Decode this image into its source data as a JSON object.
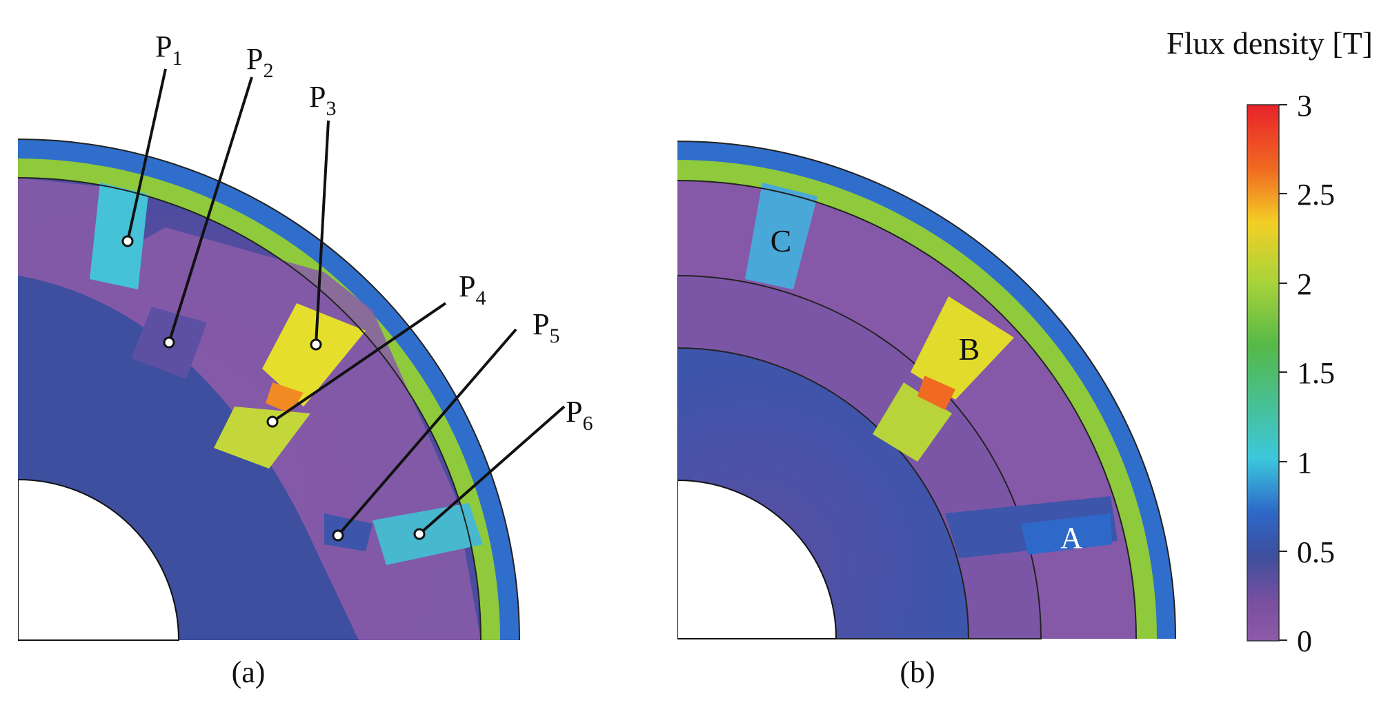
{
  "figure": {
    "colorbar": {
      "title": "Flux density [T]",
      "ticks": [
        "3",
        "2.5",
        "2",
        "1.5",
        "1",
        "0.5",
        "0"
      ],
      "colors": [
        "#e8222a",
        "#f06a22",
        "#f3cf26",
        "#a9d33a",
        "#55b848",
        "#3cc7dd",
        "#2e68c8",
        "#3d4f9e",
        "#7a4f9f",
        "#8d5aa7"
      ]
    },
    "panel_a": {
      "caption": "(a)",
      "points": [
        {
          "sub": "1"
        },
        {
          "sub": "2"
        },
        {
          "sub": "3"
        },
        {
          "sub": "4"
        },
        {
          "sub": "5"
        },
        {
          "sub": "6"
        }
      ],
      "point_prefix": "P"
    },
    "panel_b": {
      "caption": "(b)",
      "labels": {
        "a": "A",
        "b": "B",
        "c": "C"
      }
    }
  }
}
